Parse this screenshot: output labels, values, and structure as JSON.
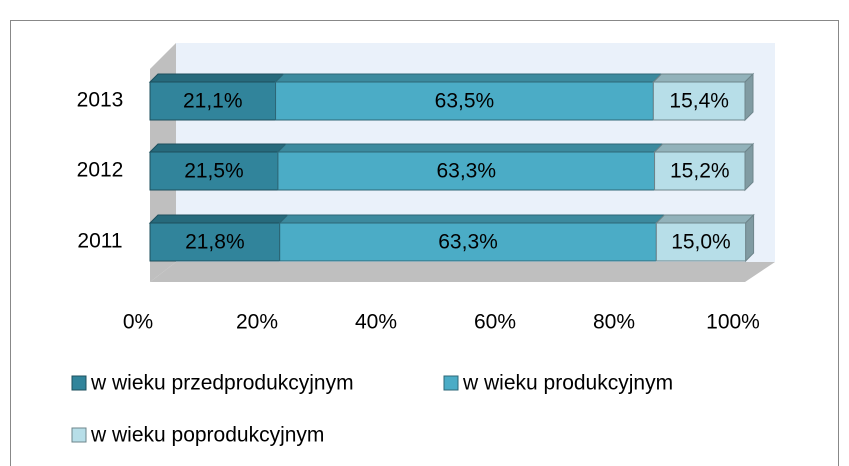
{
  "chart_data": {
    "type": "bar",
    "orientation": "horizontal",
    "stacked": true,
    "categories": [
      "2011",
      "2012",
      "2013"
    ],
    "series": [
      {
        "name": "w wieku przedprodukcyjnym",
        "color": "#31849b",
        "values": [
          21.8,
          21.5,
          21.1
        ],
        "value_labels": [
          "21,8%",
          "21,5%",
          "21,1%"
        ]
      },
      {
        "name": "w wieku produkcyjnym",
        "color": "#4bacc6",
        "values": [
          63.3,
          63.3,
          63.5
        ],
        "value_labels": [
          "63,3%",
          "63,3%",
          "63,5%"
        ]
      },
      {
        "name": "w wieku poprodukcyjnym",
        "color": "#b7dee8",
        "values": [
          15.0,
          15.2,
          15.4
        ],
        "value_labels": [
          "15,0%",
          "15,2%",
          "15,4%"
        ]
      }
    ],
    "xlim": [
      0,
      100
    ],
    "xticks": [
      {
        "value": 0,
        "label": "0%"
      },
      {
        "value": 20,
        "label": "20%"
      },
      {
        "value": 40,
        "label": "40%"
      },
      {
        "value": 60,
        "label": "60%"
      },
      {
        "value": 80,
        "label": "80%"
      },
      {
        "value": 100,
        "label": "100%"
      }
    ],
    "legend": "bottom"
  }
}
